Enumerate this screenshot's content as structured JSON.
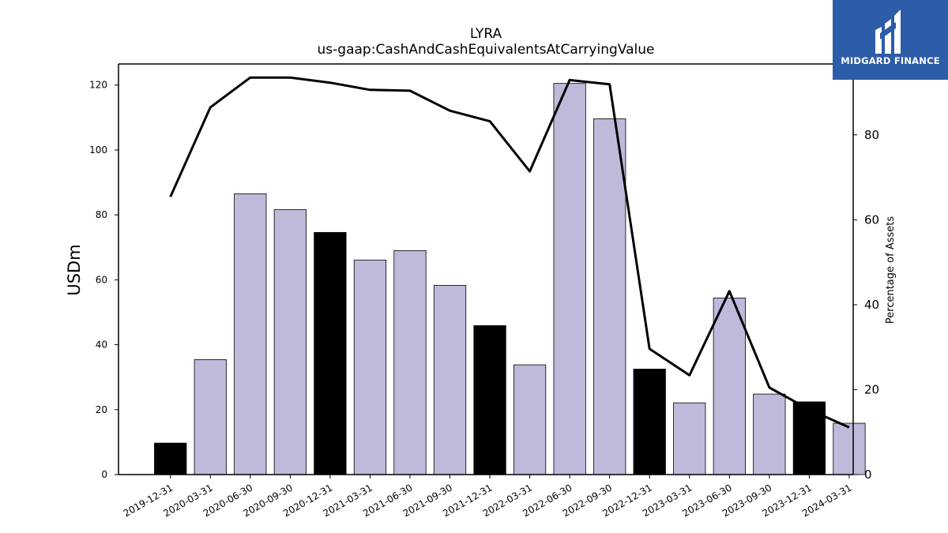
{
  "logo": {
    "text": "MIDGARD FINANCE"
  },
  "chart_data": {
    "type": "bar",
    "title": "LYRA",
    "subtitle": "us-gaap:CashAndCashEquivalentsAtCarryingValue",
    "ylabel": "USDm",
    "y2label": "Percentage of Assets",
    "ylim": [
      0,
      126.5
    ],
    "y2lim": [
      0,
      96.7
    ],
    "yticks": [
      0,
      20,
      40,
      60,
      80,
      100,
      120
    ],
    "y2ticks": [
      0,
      20,
      40,
      60,
      80
    ],
    "categories": [
      "2019-12-31",
      "2020-03-31",
      "2020-06-30",
      "2020-09-30",
      "2020-12-31",
      "2021-03-31",
      "2021-06-30",
      "2021-09-30",
      "2021-12-31",
      "2022-03-31",
      "2022-06-30",
      "2022-09-30",
      "2022-12-31",
      "2023-03-31",
      "2023-06-30",
      "2023-09-30",
      "2023-12-31",
      "2024-03-31"
    ],
    "series": [
      {
        "type": "bar",
        "axis": "left",
        "values": [
          9.7,
          35.4,
          86.5,
          81.6,
          74.6,
          66.1,
          69.0,
          58.3,
          45.9,
          33.8,
          120.5,
          109.6,
          32.5,
          22.1,
          54.4,
          24.8,
          22.4,
          15.8
        ]
      },
      {
        "type": "line",
        "axis": "right",
        "values": [
          65.4,
          86.5,
          93.5,
          93.5,
          92.3,
          90.6,
          90.4,
          85.7,
          83.2,
          71.4,
          92.9,
          91.9,
          29.6,
          23.4,
          43.2,
          20.5,
          15.3,
          11.1
        ]
      }
    ],
    "colors": {
      "bar_regular": "#bebada",
      "bar_year_end": "#000000",
      "line": "#000000",
      "bar_edge": "#000000"
    },
    "grid": false,
    "legend": "none"
  }
}
